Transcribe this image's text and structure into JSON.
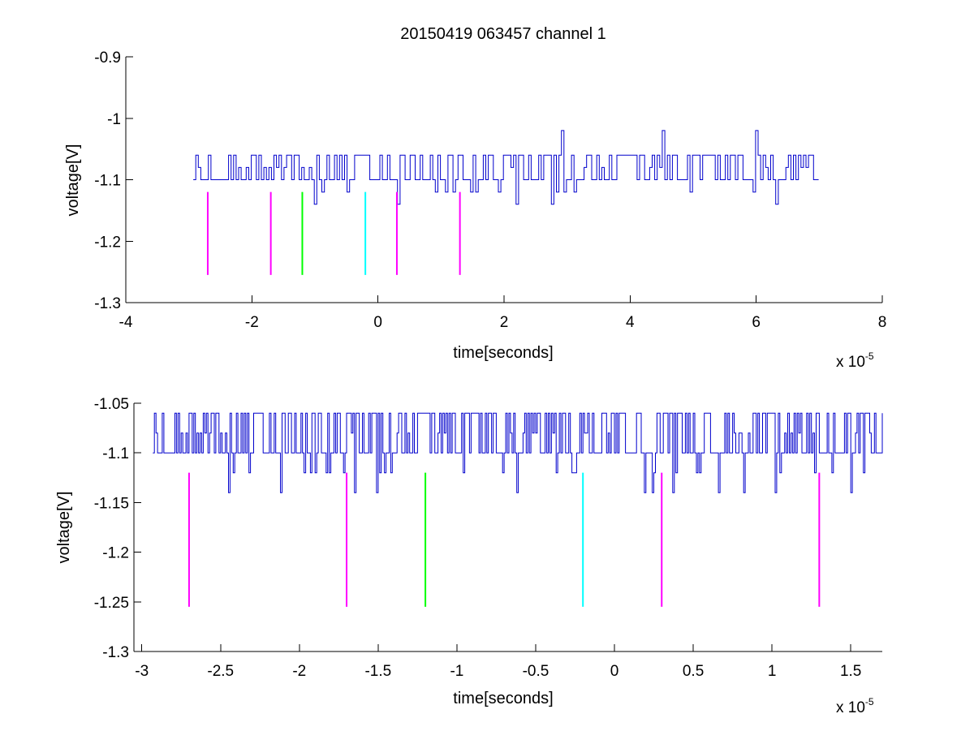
{
  "figure": {
    "title": "20150419 063457 channel 1"
  },
  "colors": {
    "trace": "#0000cc",
    "magenta": "#ff00ff",
    "green": "#00ff00",
    "cyan": "#00ffff",
    "axes": "#000000"
  },
  "chart_data": [
    {
      "type": "line",
      "title": "20150419 063457 channel 1",
      "xlabel": "time[seconds]",
      "ylabel": "voltage[V]",
      "x_exponent_base": "x 10",
      "x_exponent_power": "-5",
      "x_scale": 1e-05,
      "xlim": [
        -4,
        8
      ],
      "ylim": [
        -1.3,
        -0.9
      ],
      "xticks": [
        -4,
        -2,
        0,
        2,
        4,
        6,
        8
      ],
      "xtick_labels": [
        "-4",
        "-2",
        "0",
        "2",
        "4",
        "6",
        "8"
      ],
      "yticks": [
        -1.3,
        -1.2,
        -1.1,
        -1.0,
        -0.9
      ],
      "ytick_labels": [
        "-1.3",
        "-1.2",
        "-1.1",
        "-1",
        "-0.9"
      ],
      "grid": false,
      "series": [
        {
          "color": "#0000cc",
          "x_range": [
            -2.93,
            7.0
          ],
          "baseline": -1.1,
          "levels": [
            -1.14,
            -1.12,
            -1.1,
            -1.08,
            -1.06
          ],
          "spikes": [
            {
              "x": 2.9,
              "y": -1.02
            },
            {
              "x": 4.5,
              "y": -1.02
            },
            {
              "x": 6.0,
              "y": -1.02
            }
          ]
        }
      ],
      "markers": [
        {
          "x": -2.7,
          "y_top": -1.12,
          "y_bottom": -1.255,
          "color": "#ff00ff"
        },
        {
          "x": -1.7,
          "y_top": -1.12,
          "y_bottom": -1.255,
          "color": "#ff00ff"
        },
        {
          "x": -1.2,
          "y_top": -1.12,
          "y_bottom": -1.255,
          "color": "#00ff00"
        },
        {
          "x": -0.2,
          "y_top": -1.12,
          "y_bottom": -1.255,
          "color": "#00ffff"
        },
        {
          "x": 0.3,
          "y_top": -1.12,
          "y_bottom": -1.255,
          "color": "#ff00ff"
        },
        {
          "x": 1.3,
          "y_top": -1.12,
          "y_bottom": -1.255,
          "color": "#ff00ff"
        }
      ]
    },
    {
      "type": "line",
      "title": "",
      "xlabel": "time[seconds]",
      "ylabel": "voltage[V]",
      "x_exponent_base": "x 10",
      "x_exponent_power": "-5",
      "x_scale": 1e-05,
      "xlim": [
        -3.05,
        1.7
      ],
      "ylim": [
        -1.3,
        -1.05
      ],
      "xticks": [
        -3,
        -2.5,
        -2,
        -1.5,
        -1,
        -0.5,
        0,
        0.5,
        1,
        1.5
      ],
      "xtick_labels": [
        "-3",
        "-2.5",
        "-2",
        "-1.5",
        "-1",
        "-0.5",
        "0",
        "0.5",
        "1",
        "1.5"
      ],
      "yticks": [
        -1.3,
        -1.25,
        -1.2,
        -1.15,
        -1.1,
        -1.05
      ],
      "ytick_labels": [
        "-1.3",
        "-1.25",
        "-1.2",
        "-1.15",
        "-1.1",
        "-1.05"
      ],
      "grid": false,
      "series": [
        {
          "color": "#0000cc",
          "x_range": [
            -2.93,
            1.7
          ],
          "baseline": -1.1,
          "levels": [
            -1.14,
            -1.12,
            -1.1,
            -1.08,
            -1.06
          ]
        }
      ],
      "markers": [
        {
          "x": -2.7,
          "y_top": -1.12,
          "y_bottom": -1.255,
          "color": "#ff00ff"
        },
        {
          "x": -1.7,
          "y_top": -1.12,
          "y_bottom": -1.255,
          "color": "#ff00ff"
        },
        {
          "x": -1.2,
          "y_top": -1.12,
          "y_bottom": -1.255,
          "color": "#00ff00"
        },
        {
          "x": -0.2,
          "y_top": -1.12,
          "y_bottom": -1.255,
          "color": "#00ffff"
        },
        {
          "x": 0.3,
          "y_top": -1.12,
          "y_bottom": -1.255,
          "color": "#ff00ff"
        },
        {
          "x": 1.3,
          "y_top": -1.12,
          "y_bottom": -1.255,
          "color": "#ff00ff"
        }
      ]
    }
  ]
}
